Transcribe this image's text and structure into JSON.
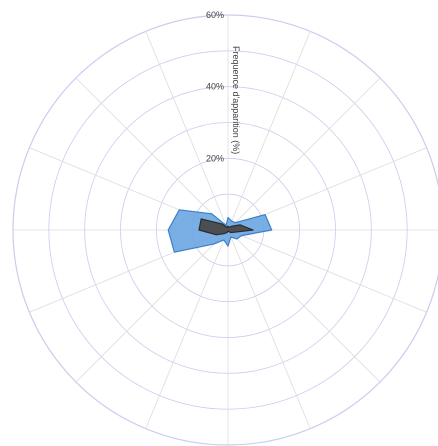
{
  "chart_data": {
    "type": "radar",
    "title": "",
    "r_axis_label": "Frequence d'apparition (%)",
    "r_ticks": [
      "20%",
      "40%",
      "60%"
    ],
    "r_max": 60,
    "directions": 16,
    "grid": true,
    "series": [
      {
        "color": "#6aa6e2",
        "stroke": "#3d7fc6",
        "values": [
          3.5,
          2.7,
          2.9,
          11.2,
          12.2,
          4.1,
          3.5,
          2.1,
          4.5,
          3.0,
          5.5,
          16.2,
          16.7,
          14.7,
          6.4,
          1.4
        ]
      },
      {
        "color": "#4a4a4a",
        "stroke": "#2b2b2b",
        "values": [
          1.1,
          0.8,
          1.5,
          3.7,
          7.0,
          1.7,
          1.0,
          0.4,
          0.3,
          0.8,
          1.4,
          3.5,
          8.1,
          8.1,
          2.4,
          0.8
        ]
      }
    ],
    "colors": {
      "grid_ring": "#ccccee",
      "grid_spoke": "#dcdcdc"
    }
  }
}
